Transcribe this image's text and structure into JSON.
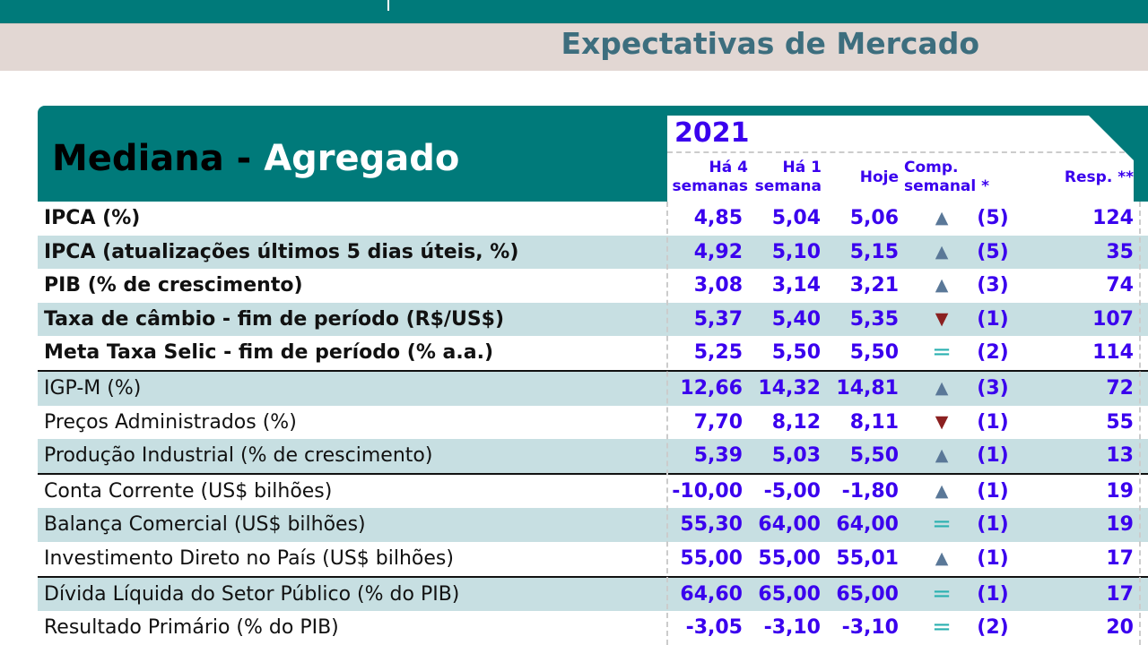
{
  "page_title": "Expectativas de Mercado",
  "table": {
    "title_black": "Mediana - ",
    "title_white": "Agregado",
    "year": "2021",
    "headers": {
      "ha4_l1": "Há 4",
      "ha4_l2": "semanas",
      "ha1_l1": "Há 1",
      "ha1_l2": "semana",
      "hoje": "Hoje",
      "comp_l1": "Comp.",
      "comp_l2": "semanal *",
      "resp": "Resp. **"
    },
    "colors": {
      "teal": "#007a7a",
      "value": "#3a00ee",
      "up": "#5a7898",
      "down": "#8b2020",
      "equal": "#2ab0b0"
    },
    "rows": [
      {
        "label": "IPCA (%)",
        "ha4": "4,85",
        "ha1": "5,04",
        "hoje": "5,06",
        "trend": "up",
        "comp": "(5)",
        "resp": "124"
      },
      {
        "label": "IPCA (atualizações últimos 5 dias úteis, %)",
        "ha4": "4,92",
        "ha1": "5,10",
        "hoje": "5,15",
        "trend": "up",
        "comp": "(5)",
        "resp": "35"
      },
      {
        "label": "PIB (% de crescimento)",
        "ha4": "3,08",
        "ha1": "3,14",
        "hoje": "3,21",
        "trend": "up",
        "comp": "(3)",
        "resp": "74"
      },
      {
        "label": "Taxa de câmbio - fim de período (R$/US$)",
        "ha4": "5,37",
        "ha1": "5,40",
        "hoje": "5,35",
        "trend": "down",
        "comp": "(1)",
        "resp": "107"
      },
      {
        "label": "Meta Taxa Selic - fim de período (% a.a.)",
        "ha4": "5,25",
        "ha1": "5,50",
        "hoje": "5,50",
        "trend": "equal",
        "comp": "(2)",
        "resp": "114"
      },
      {
        "label": "IGP-M (%)",
        "ha4": "12,66",
        "ha1": "14,32",
        "hoje": "14,81",
        "trend": "up",
        "comp": "(3)",
        "resp": "72"
      },
      {
        "label": "Preços Administrados (%)",
        "ha4": "7,70",
        "ha1": "8,12",
        "hoje": "8,11",
        "trend": "down",
        "comp": "(1)",
        "resp": "55"
      },
      {
        "label": "Produção Industrial (% de crescimento)",
        "ha4": "5,39",
        "ha1": "5,03",
        "hoje": "5,50",
        "trend": "up",
        "comp": "(1)",
        "resp": "13"
      },
      {
        "label": "Conta Corrente (US$ bilhões)",
        "ha4": "-10,00",
        "ha1": "-5,00",
        "hoje": "-1,80",
        "trend": "up",
        "comp": "(1)",
        "resp": "19"
      },
      {
        "label": "Balança Comercial (US$ bilhões)",
        "ha4": "55,30",
        "ha1": "64,00",
        "hoje": "64,00",
        "trend": "equal",
        "comp": "(1)",
        "resp": "19"
      },
      {
        "label": "Investimento Direto no País (US$ bilhões)",
        "ha4": "55,00",
        "ha1": "55,00",
        "hoje": "55,01",
        "trend": "up",
        "comp": "(1)",
        "resp": "17"
      },
      {
        "label": "Dívida Líquida do Setor Público (% do PIB)",
        "ha4": "64,60",
        "ha1": "65,00",
        "hoje": "65,00",
        "trend": "equal",
        "comp": "(1)",
        "resp": "17"
      },
      {
        "label": "Resultado Primário (% do PIB)",
        "ha4": "-3,05",
        "ha1": "-3,10",
        "hoje": "-3,10",
        "trend": "equal",
        "comp": "(2)",
        "resp": "20"
      }
    ]
  }
}
